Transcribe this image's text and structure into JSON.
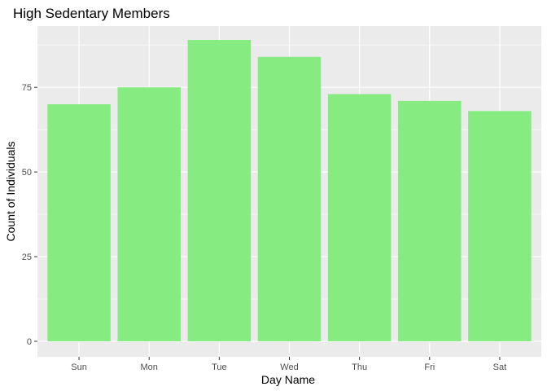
{
  "chart_data": {
    "type": "bar",
    "title": "High Sedentary Members",
    "xlabel": "Day Name",
    "ylabel": "Count of Individuals",
    "categories": [
      "Sun",
      "Mon",
      "Tue",
      "Wed",
      "Thu",
      "Fri",
      "Sat"
    ],
    "values": [
      70,
      75,
      89,
      84,
      73,
      71,
      68
    ],
    "yticks": [
      0,
      25,
      50,
      75
    ],
    "ylim": [
      0,
      93.5
    ],
    "grid": true,
    "bar_color": "#86EC82",
    "panel_color": "#EBEBEB",
    "grid_color": "#FFFFFF"
  }
}
